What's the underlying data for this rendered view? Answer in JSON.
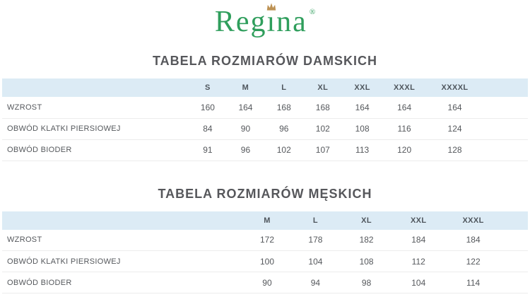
{
  "logo": {
    "text": "Regina",
    "text_before_crown": "Reg",
    "crowned_letter": "i",
    "text_after_crown": "na",
    "registered_mark": "®",
    "text_color": "#2f9e5c",
    "crown_color": "#bd9254"
  },
  "tables": [
    {
      "title": "TABELA ROZMIARÓW DAMSKICH",
      "sizes": [
        "S",
        "M",
        "L",
        "XL",
        "XXL",
        "XXXL",
        "XXXXL"
      ],
      "rows": [
        {
          "label": "WZROST",
          "values": [
            "160",
            "164",
            "168",
            "168",
            "164",
            "164",
            "164"
          ]
        },
        {
          "label": "OBWÓD KLATKI PIERSIOWEJ",
          "values": [
            "84",
            "90",
            "96",
            "102",
            "108",
            "116",
            "124"
          ]
        },
        {
          "label": "OBWÓD BIODER",
          "values": [
            "91",
            "96",
            "102",
            "107",
            "113",
            "120",
            "128"
          ]
        }
      ]
    },
    {
      "title": "TABELA ROZMIARÓW MĘSKICH",
      "sizes": [
        "M",
        "L",
        "XL",
        "XXL",
        "XXXL"
      ],
      "rows": [
        {
          "label": "WZROST",
          "values": [
            "172",
            "178",
            "182",
            "184",
            "184"
          ]
        },
        {
          "label": "OBWÓD KLATKI PIERSIOWEJ",
          "values": [
            "100",
            "104",
            "108",
            "112",
            "122"
          ]
        },
        {
          "label": "OBWÓD BIODER",
          "values": [
            "90",
            "94",
            "98",
            "104",
            "114"
          ]
        }
      ]
    }
  ],
  "colors": {
    "table_header_bg": "#dcebf5",
    "title_text": "#56575b",
    "table_text": "#55585c",
    "row_divider": "#ececec"
  }
}
